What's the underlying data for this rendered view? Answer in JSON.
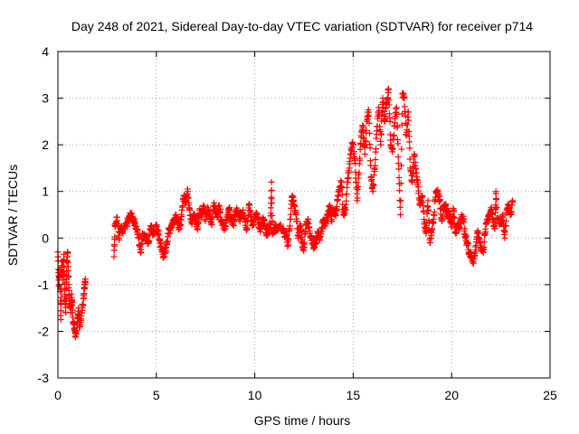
{
  "chart_data": {
    "type": "scatter",
    "title": "Day 248 of 2021, Sidereal Day-to-day VTEC variation (SDTVAR) for receiver p714",
    "xlabel": "GPS time / hours",
    "ylabel": "SDTVAR / TECUs",
    "xlim": [
      0,
      25
    ],
    "ylim": [
      -3,
      4
    ],
    "xticks": [
      "0",
      "5",
      "10",
      "15",
      "20",
      "25"
    ],
    "yticks": [
      "-3",
      "-2",
      "-1",
      "0",
      "1",
      "2",
      "3",
      "4"
    ],
    "grid": true,
    "marker": "+",
    "series_color": "#ff0000",
    "trace": [
      [
        0.0,
        -0.3
      ],
      [
        0.05,
        -1.0
      ],
      [
        0.1,
        -0.7
      ],
      [
        0.15,
        -1.75
      ],
      [
        0.2,
        -0.5
      ],
      [
        0.25,
        -0.9
      ],
      [
        0.3,
        -0.35
      ],
      [
        0.35,
        -1.2
      ],
      [
        0.4,
        -1.6
      ],
      [
        0.45,
        -0.5
      ],
      [
        0.5,
        -0.3
      ],
      [
        0.55,
        -1.0
      ],
      [
        0.6,
        -1.4
      ],
      [
        0.65,
        -1.6
      ],
      [
        0.7,
        -1.2
      ],
      [
        0.75,
        -1.7
      ],
      [
        0.85,
        -1.95
      ],
      [
        0.9,
        -2.1
      ],
      [
        1.0,
        -1.8
      ],
      [
        1.05,
        -1.5
      ],
      [
        1.1,
        -1.9
      ],
      [
        1.2,
        -1.6
      ],
      [
        1.3,
        -1.3
      ],
      [
        1.35,
        -1.0
      ],
      [
        1.4,
        -0.95
      ],
      [
        2.85,
        -0.4
      ],
      [
        2.9,
        0.3
      ],
      [
        3.0,
        0.45
      ],
      [
        3.1,
        0.0
      ],
      [
        3.2,
        0.2
      ],
      [
        3.3,
        0.1
      ],
      [
        3.5,
        0.3
      ],
      [
        3.6,
        0.4
      ],
      [
        3.7,
        0.5
      ],
      [
        3.8,
        0.4
      ],
      [
        3.9,
        0.35
      ],
      [
        4.0,
        0.2
      ],
      [
        4.1,
        0.0
      ],
      [
        4.2,
        -0.3
      ],
      [
        4.3,
        0.1
      ],
      [
        4.4,
        0.0
      ],
      [
        4.5,
        0.05
      ],
      [
        4.6,
        -0.1
      ],
      [
        4.7,
        0.2
      ],
      [
        4.8,
        0.15
      ],
      [
        4.9,
        0.1
      ],
      [
        5.0,
        0.25
      ],
      [
        5.1,
        0.1
      ],
      [
        5.2,
        -0.1
      ],
      [
        5.3,
        -0.3
      ],
      [
        5.4,
        -0.4
      ],
      [
        5.5,
        -0.2
      ],
      [
        5.6,
        0.1
      ],
      [
        5.7,
        0.2
      ],
      [
        5.8,
        0.3
      ],
      [
        5.9,
        0.4
      ],
      [
        6.0,
        0.5
      ],
      [
        6.1,
        0.3
      ],
      [
        6.2,
        0.2
      ],
      [
        6.3,
        0.6
      ],
      [
        6.4,
        0.9
      ],
      [
        6.5,
        0.8
      ],
      [
        6.6,
        1.0
      ],
      [
        6.7,
        0.6
      ],
      [
        6.8,
        0.3
      ],
      [
        6.9,
        0.5
      ],
      [
        7.0,
        0.4
      ],
      [
        7.1,
        0.2
      ],
      [
        7.2,
        0.6
      ],
      [
        7.3,
        0.5
      ],
      [
        7.4,
        0.7
      ],
      [
        7.5,
        0.4
      ],
      [
        7.6,
        0.6
      ],
      [
        7.7,
        0.5
      ],
      [
        7.8,
        0.3
      ],
      [
        7.9,
        0.7
      ],
      [
        8.0,
        0.6
      ],
      [
        8.1,
        0.5
      ],
      [
        8.2,
        0.7
      ],
      [
        8.3,
        0.4
      ],
      [
        8.4,
        0.3
      ],
      [
        8.5,
        0.2
      ],
      [
        8.6,
        0.5
      ],
      [
        8.7,
        0.6
      ],
      [
        8.8,
        0.4
      ],
      [
        8.9,
        0.3
      ],
      [
        9.0,
        0.5
      ],
      [
        9.1,
        0.6
      ],
      [
        9.2,
        0.4
      ],
      [
        9.3,
        0.5
      ],
      [
        9.4,
        0.6
      ],
      [
        9.5,
        0.4
      ],
      [
        9.6,
        0.2
      ],
      [
        9.7,
        0.7
      ],
      [
        9.8,
        0.5
      ],
      [
        9.9,
        0.3
      ],
      [
        10.0,
        0.4
      ],
      [
        10.1,
        0.5
      ],
      [
        10.2,
        0.3
      ],
      [
        10.3,
        0.2
      ],
      [
        10.4,
        0.4
      ],
      [
        10.5,
        0.3
      ],
      [
        10.6,
        0.1
      ],
      [
        10.7,
        0.2
      ],
      [
        10.8,
        0.3
      ],
      [
        10.85,
        1.2
      ],
      [
        10.9,
        0.1
      ],
      [
        11.0,
        0.2
      ],
      [
        11.2,
        0.25
      ],
      [
        11.4,
        0.2
      ],
      [
        11.5,
        0.1
      ],
      [
        11.6,
        0.05
      ],
      [
        11.7,
        -0.15
      ],
      [
        11.8,
        0.4
      ],
      [
        11.9,
        0.9
      ],
      [
        12.0,
        0.7
      ],
      [
        12.1,
        0.5
      ],
      [
        12.2,
        0.0
      ],
      [
        12.3,
        0.3
      ],
      [
        12.4,
        -0.1
      ],
      [
        12.5,
        -0.2
      ],
      [
        12.6,
        0.3
      ],
      [
        12.7,
        0.4
      ],
      [
        12.8,
        0.1
      ],
      [
        12.9,
        0.0
      ],
      [
        13.0,
        -0.2
      ],
      [
        13.1,
        -0.1
      ],
      [
        13.2,
        0.1
      ],
      [
        13.3,
        0.0
      ],
      [
        13.4,
        0.2
      ],
      [
        13.5,
        0.4
      ],
      [
        13.6,
        0.3
      ],
      [
        13.7,
        0.5
      ],
      [
        13.8,
        0.7
      ],
      [
        13.9,
        0.4
      ],
      [
        14.0,
        0.6
      ],
      [
        14.1,
        0.5
      ],
      [
        14.2,
        0.8
      ],
      [
        14.3,
        1.0
      ],
      [
        14.4,
        1.2
      ],
      [
        14.5,
        0.5
      ],
      [
        14.6,
        0.6
      ],
      [
        14.7,
        1.2
      ],
      [
        14.8,
        1.5
      ],
      [
        14.9,
        1.9
      ],
      [
        15.0,
        2.0
      ],
      [
        15.1,
        1.6
      ],
      [
        15.2,
        0.8
      ],
      [
        15.3,
        1.4
      ],
      [
        15.4,
        2.2
      ],
      [
        15.5,
        2.4
      ],
      [
        15.6,
        1.8
      ],
      [
        15.7,
        2.6
      ],
      [
        15.8,
        2.7
      ],
      [
        15.9,
        1.3
      ],
      [
        16.0,
        1.0
      ],
      [
        16.1,
        1.5
      ],
      [
        16.2,
        2.3
      ],
      [
        16.3,
        2.8
      ],
      [
        16.4,
        2.0
      ],
      [
        16.5,
        3.0
      ],
      [
        16.6,
        2.5
      ],
      [
        16.7,
        2.9
      ],
      [
        16.8,
        3.2
      ],
      [
        16.9,
        2.1
      ],
      [
        17.0,
        1.9
      ],
      [
        17.1,
        2.4
      ],
      [
        17.2,
        2.8
      ],
      [
        17.3,
        1.6
      ],
      [
        17.4,
        0.5
      ],
      [
        17.5,
        3.1
      ],
      [
        17.6,
        3.0
      ],
      [
        17.7,
        2.2
      ],
      [
        17.8,
        2.7
      ],
      [
        17.9,
        1.5
      ],
      [
        18.0,
        1.2
      ],
      [
        18.1,
        1.8
      ],
      [
        18.2,
        1.4
      ],
      [
        18.3,
        1.1
      ],
      [
        18.4,
        0.7
      ],
      [
        18.5,
        0.9
      ],
      [
        18.6,
        0.4
      ],
      [
        18.7,
        0.1
      ],
      [
        18.8,
        0.8
      ],
      [
        18.9,
        -0.1
      ],
      [
        19.0,
        0.2
      ],
      [
        19.1,
        0.5
      ],
      [
        19.2,
        1.0
      ],
      [
        19.3,
        1.0
      ],
      [
        19.4,
        0.8
      ],
      [
        19.5,
        0.4
      ],
      [
        19.6,
        0.6
      ],
      [
        19.7,
        0.7
      ],
      [
        19.8,
        0.5
      ],
      [
        19.9,
        0.5
      ],
      [
        20.0,
        0.3
      ],
      [
        20.1,
        0.6
      ],
      [
        20.2,
        0.1
      ],
      [
        20.3,
        0.3
      ],
      [
        20.4,
        0.2
      ],
      [
        20.5,
        0.5
      ],
      [
        20.6,
        0.4
      ],
      [
        20.7,
        0.0
      ],
      [
        20.8,
        -0.1
      ],
      [
        20.9,
        -0.3
      ],
      [
        21.0,
        -0.4
      ],
      [
        21.1,
        -0.5
      ],
      [
        21.2,
        -0.3
      ],
      [
        21.3,
        0.1
      ],
      [
        21.4,
        0.0
      ],
      [
        21.5,
        -0.2
      ],
      [
        21.6,
        -0.3
      ],
      [
        21.7,
        0.1
      ],
      [
        21.8,
        0.4
      ],
      [
        21.9,
        0.5
      ],
      [
        22.0,
        0.6
      ],
      [
        22.1,
        0.4
      ],
      [
        22.2,
        0.2
      ],
      [
        22.25,
        1.0
      ],
      [
        22.3,
        0.4
      ],
      [
        22.5,
        0.3
      ],
      [
        22.6,
        0.5
      ],
      [
        22.7,
        0.0
      ],
      [
        22.8,
        0.6
      ],
      [
        22.9,
        0.7
      ],
      [
        23.0,
        0.5
      ],
      [
        23.1,
        0.8
      ]
    ]
  }
}
